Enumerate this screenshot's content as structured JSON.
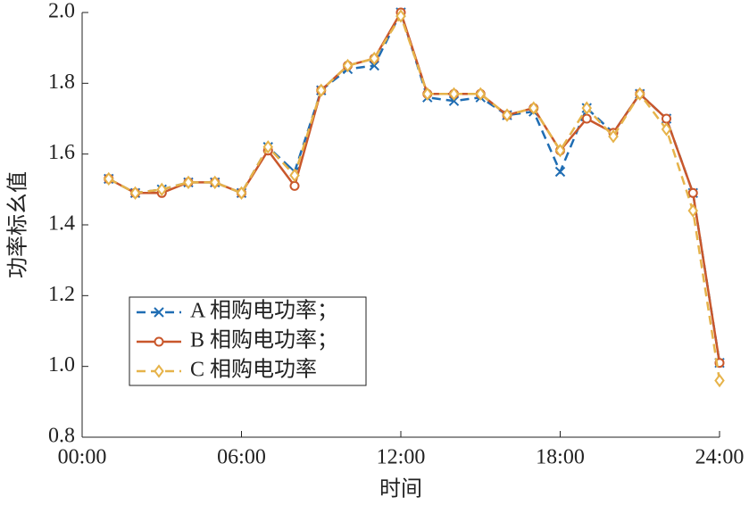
{
  "chart_data": {
    "type": "line",
    "x_label": "时间",
    "y_label": "功率标幺值",
    "x": [
      1,
      2,
      3,
      4,
      5,
      6,
      7,
      8,
      9,
      10,
      11,
      12,
      13,
      14,
      15,
      16,
      17,
      18,
      19,
      20,
      21,
      22,
      23,
      24
    ],
    "xlim": [
      0,
      24
    ],
    "xticks": [
      {
        "value": 0,
        "label": "00:00"
      },
      {
        "value": 6,
        "label": "06:00"
      },
      {
        "value": 12,
        "label": "12:00"
      },
      {
        "value": 18,
        "label": "18:00"
      },
      {
        "value": 24,
        "label": "24:00"
      }
    ],
    "ylim": [
      0.8,
      2.0
    ],
    "yticks": [
      0.8,
      {
        "value": 1.0,
        "label": "1.0"
      },
      1.2,
      1.4,
      1.6,
      1.8,
      {
        "value": 2.0,
        "label": "2.0"
      }
    ],
    "legend": "lower left",
    "series": [
      {
        "name": "A 相购电功率；",
        "color": "#1f6db3",
        "dash": "dashed",
        "marker": "x",
        "values": [
          1.53,
          1.49,
          1.5,
          1.52,
          1.52,
          1.49,
          1.62,
          1.55,
          1.78,
          1.84,
          1.85,
          2.0,
          1.76,
          1.75,
          1.76,
          1.71,
          1.72,
          1.55,
          1.73,
          1.66,
          1.77,
          1.7,
          1.49,
          1.01
        ]
      },
      {
        "name": "B 相购电功率；",
        "color": "#c9572b",
        "dash": "solid",
        "marker": "circle",
        "values": [
          1.53,
          1.49,
          1.49,
          1.52,
          1.52,
          1.49,
          1.61,
          1.51,
          1.78,
          1.85,
          1.87,
          2.0,
          1.77,
          1.77,
          1.77,
          1.71,
          1.73,
          1.61,
          1.7,
          1.66,
          1.77,
          1.7,
          1.49,
          1.01
        ]
      },
      {
        "name": "C 相购电功率",
        "color": "#e6b34a",
        "dash": "dashed",
        "marker": "diamond",
        "values": [
          1.53,
          1.49,
          1.5,
          1.52,
          1.52,
          1.49,
          1.62,
          1.54,
          1.78,
          1.85,
          1.87,
          1.99,
          1.77,
          1.77,
          1.77,
          1.71,
          1.73,
          1.61,
          1.73,
          1.65,
          1.77,
          1.67,
          1.44,
          0.96
        ]
      }
    ]
  }
}
